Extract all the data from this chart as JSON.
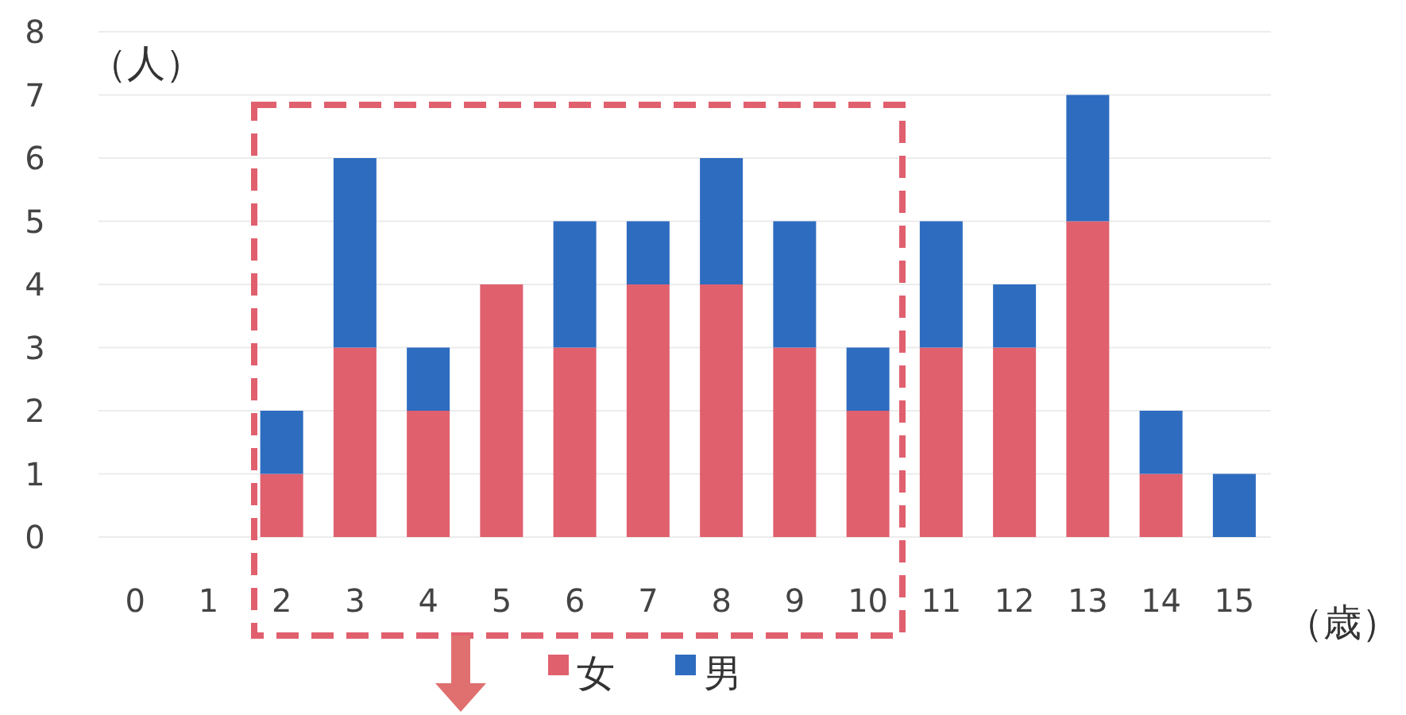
{
  "chart_data": {
    "type": "bar",
    "stacked": true,
    "ylabel": "（人）",
    "xlabel": "（歳）",
    "categories": [
      "0",
      "1",
      "2",
      "3",
      "4",
      "5",
      "6",
      "7",
      "8",
      "9",
      "10",
      "11",
      "12",
      "13",
      "14",
      "15"
    ],
    "series": [
      {
        "name": "女",
        "color": "#e0606e",
        "values": [
          0,
          0,
          1,
          3,
          2,
          4,
          3,
          4,
          4,
          3,
          2,
          3,
          3,
          5,
          1,
          0
        ]
      },
      {
        "name": "男",
        "color": "#2e6cc0",
        "values": [
          0,
          0,
          1,
          3,
          1,
          0,
          2,
          1,
          2,
          2,
          1,
          2,
          1,
          2,
          1,
          1
        ]
      }
    ],
    "ylim": [
      0,
      8
    ],
    "yticks": [
      0,
      1,
      2,
      3,
      4,
      5,
      6,
      7,
      8
    ],
    "grid": "y",
    "legend": "bottom"
  }
}
